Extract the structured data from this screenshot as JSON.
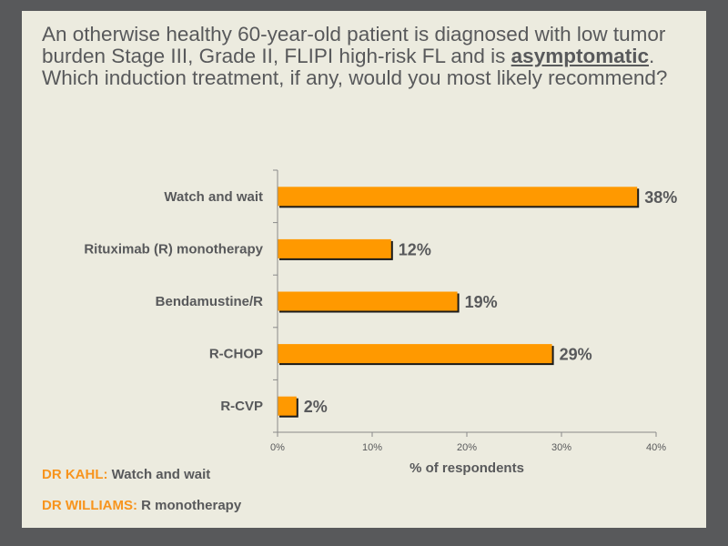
{
  "question": {
    "before": "An otherwise healthy 60-year-old patient is diagnosed with low tumor burden Stage III, Grade II, FLIPI high-risk FL and is ",
    "emphasis": "asymptomatic",
    "after": ". Which induction treatment, if any, would you most likely recommend?"
  },
  "experts": [
    {
      "name": "DR KAHL:",
      "choice": "Watch and wait"
    },
    {
      "name": "DR WILLIAMS:",
      "choice": "R monotherapy"
    }
  ],
  "colors": {
    "bar": "#ff9900",
    "bar_edge": "#1a1a1a",
    "text": "#58595b",
    "accent": "#f7941d",
    "background": "#ecebdf",
    "frame": "#58595b"
  },
  "chart_data": {
    "type": "bar",
    "orientation": "horizontal",
    "categories": [
      "Watch and wait",
      "Rituximab (R) monotherapy",
      "Bendamustine/R",
      "R-CHOP",
      "R-CVP"
    ],
    "values": [
      38,
      12,
      19,
      29,
      2
    ],
    "value_labels": [
      "38%",
      "12%",
      "19%",
      "29%",
      "2%"
    ],
    "xlabel": "% of respondents",
    "xlim": [
      0,
      40
    ],
    "xticks": [
      "0%",
      "10%",
      "20%",
      "30%",
      "40%"
    ],
    "grid": false,
    "legend": "none"
  }
}
